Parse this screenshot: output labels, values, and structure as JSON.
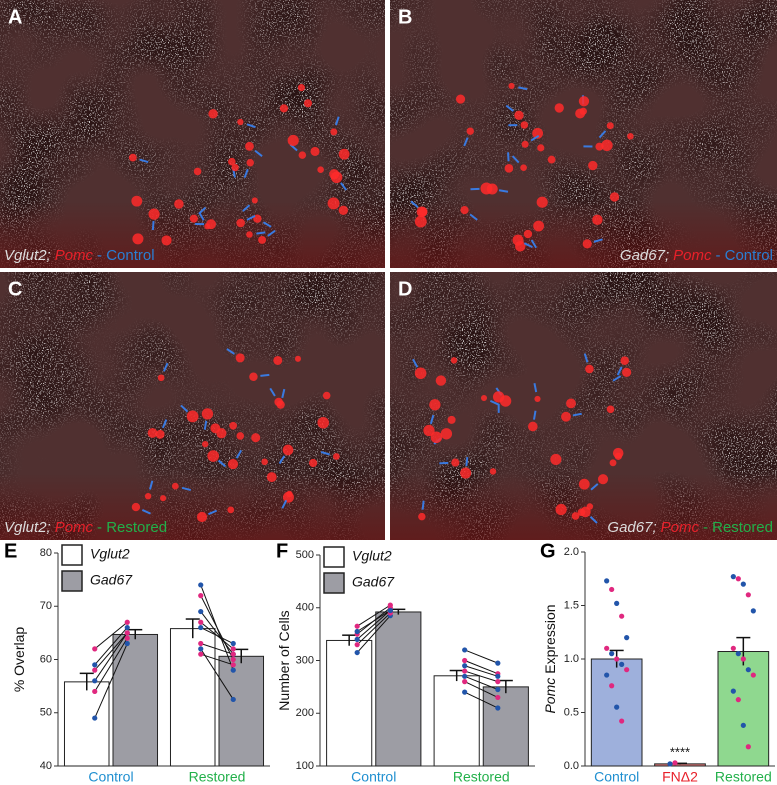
{
  "panels": [
    {
      "letter": "A",
      "caption": [
        {
          "text": "Vglut2;",
          "color": "#dddddd",
          "italic": true
        },
        {
          "text": "Pomc",
          "color": "#e8202a",
          "italic": true
        },
        {
          "text": "- Control",
          "color": "#2a7fd4",
          "italic": false
        }
      ]
    },
    {
      "letter": "B",
      "caption": [
        {
          "text": "Gad67;",
          "color": "#dddddd",
          "italic": true
        },
        {
          "text": "Pomc",
          "color": "#e8202a",
          "italic": true
        },
        {
          "text": "- Control",
          "color": "#2a7fd4",
          "italic": false
        }
      ]
    },
    {
      "letter": "C",
      "caption": [
        {
          "text": "Vglut2;",
          "color": "#dddddd",
          "italic": true
        },
        {
          "text": "Pomc",
          "color": "#e8202a",
          "italic": true
        },
        {
          "text": "- Restored",
          "color": "#22b04a",
          "italic": false
        }
      ]
    },
    {
      "letter": "D",
      "caption": [
        {
          "text": "Gad67;",
          "color": "#dddddd",
          "italic": true
        },
        {
          "text": "Pomc",
          "color": "#e8202a",
          "italic": true
        },
        {
          "text": "- Restored",
          "color": "#22b04a",
          "italic": false
        }
      ]
    }
  ],
  "chart_data": [
    {
      "type": "bar",
      "letter": "E",
      "y_label": "% Overlap",
      "categories": [
        "Control",
        "Restored"
      ],
      "category_colors": [
        "#1f8fd0",
        "#22b04a"
      ],
      "ylim": [
        40,
        80
      ],
      "yticks": [
        40,
        50,
        60,
        70,
        80
      ],
      "point_colors": [
        "#2255aa",
        "#e0287f"
      ],
      "paired": true,
      "series": [
        {
          "name": "Vglut2",
          "color": "#ffffff",
          "values": [
            55.8,
            65.8
          ],
          "errors": [
            1.6,
            1.8
          ],
          "points": [
            [
              49,
              54,
              56,
              58,
              59,
              62
            ],
            [
              74,
              72,
              69,
              67,
              66,
              63,
              62,
              61
            ]
          ]
        },
        {
          "name": "Gad67",
          "color": "#9d9da4",
          "values": [
            64.7,
            60.6
          ],
          "errors": [
            0.9,
            1.3
          ],
          "points": [
            [
              63,
              64,
              65,
              65,
              66,
              67
            ],
            [
              58,
              60,
              61,
              62,
              63,
              61,
              52.5,
              59
            ]
          ]
        }
      ]
    },
    {
      "type": "bar",
      "letter": "F",
      "y_label": "Number of Cells",
      "categories": [
        "Control",
        "Restored"
      ],
      "category_colors": [
        "#1f8fd0",
        "#22b04a"
      ],
      "ylim": [
        100,
        500
      ],
      "yticks": [
        100,
        200,
        300,
        400,
        500
      ],
      "point_colors": [
        "#2255aa",
        "#e0287f"
      ],
      "paired": true,
      "series": [
        {
          "name": "Vglut2",
          "color": "#ffffff",
          "values": [
            338,
            271
          ],
          "errors": [
            10,
            10
          ],
          "points": [
            [
              315,
              330,
              340,
              350,
              355,
              365
            ],
            [
              320,
              300,
              290,
              280,
              270,
              260,
              240
            ]
          ]
        },
        {
          "name": "Gad67",
          "color": "#9d9da4",
          "values": [
            392,
            250
          ],
          "errors": [
            5,
            12
          ],
          "points": [
            [
              385,
              390,
              395,
              400,
              395,
              405
            ],
            [
              295,
              275,
              270,
              260,
              245,
              230,
              210
            ]
          ]
        }
      ]
    },
    {
      "type": "bar",
      "letter": "G",
      "y_label_italic": "Pomc",
      "y_label": "Expression",
      "categories": [
        "Control",
        "FNΔ2",
        "Restored"
      ],
      "category_colors": [
        "#1f8fd0",
        "#e8202a",
        "#22b04a"
      ],
      "ylim": [
        0,
        2
      ],
      "yticks": [
        {
          "value": 0,
          "label": "0.0"
        },
        0.5,
        {
          "value": 1,
          "label": "1.0"
        },
        1.5,
        {
          "value": 2,
          "label": "2.0"
        }
      ],
      "point_colors": [
        "#2255aa",
        "#e0287f"
      ],
      "annotation": "****",
      "series": [
        {
          "colors": [
            "#9eb0dc",
            "#e07a7a",
            "#8fd88f"
          ],
          "values": [
            1.0,
            0.02,
            1.07
          ],
          "errors": [
            0.08,
            0.005,
            0.13
          ],
          "points": [
            [
              1.73,
              1.65,
              1.52,
              1.4,
              1.2,
              1.1,
              1.05,
              1.0,
              0.95,
              0.9,
              0.85,
              0.75,
              0.55,
              0.42
            ],
            [
              0.02,
              0.03
            ],
            [
              1.77,
              1.75,
              1.7,
              1.6,
              1.45,
              1.1,
              1.05,
              1.0,
              0.9,
              0.85,
              0.7,
              0.62,
              0.38,
              0.18
            ]
          ]
        }
      ]
    }
  ]
}
